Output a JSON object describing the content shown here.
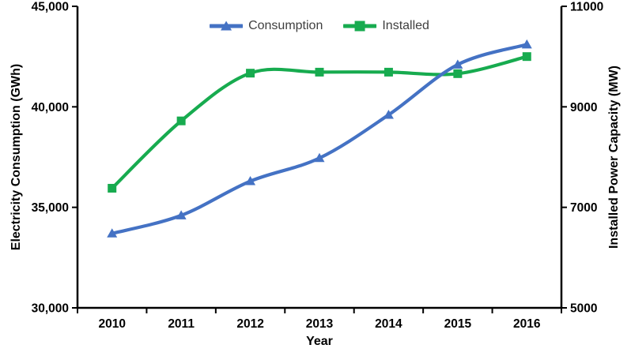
{
  "chart_data": {
    "type": "line",
    "title": "",
    "categories": [
      "2010",
      "2011",
      "2012",
      "2013",
      "2014",
      "2015",
      "2016"
    ],
    "series": [
      {
        "name": "Consumption",
        "y_axis": "left",
        "color": "#4472C4",
        "marker": "triangle",
        "values": [
          33700,
          34600,
          36300,
          37450,
          39600,
          42100,
          43100
        ]
      },
      {
        "name": "Installed",
        "y_axis": "right",
        "color": "#17AB4F",
        "marker": "square",
        "values": [
          7380,
          8720,
          9670,
          9690,
          9690,
          9660,
          10000
        ]
      }
    ],
    "xlabel": "Year",
    "ylabel_left": "Electricity Consumption (GWh)",
    "ylabel_right": "Installed Power Capacity (MW)",
    "ylim_left": [
      30000,
      45000
    ],
    "ylim_right": [
      5000,
      11000
    ],
    "yticks_left": {
      "values": [
        30000,
        35000,
        40000,
        45000
      ],
      "labels": [
        "30,000",
        "35,000",
        "40,000",
        "45,000"
      ]
    },
    "yticks_right": {
      "values": [
        5000,
        7000,
        9000,
        11000
      ],
      "labels": [
        "5000",
        "7000",
        "9000",
        "11000"
      ]
    },
    "legend_position": "top-center",
    "grid": false,
    "line_smoothing": true,
    "axis_color": "#000000",
    "tick_text_color": "#000000",
    "legend_text_color": "#3f3f3f"
  }
}
